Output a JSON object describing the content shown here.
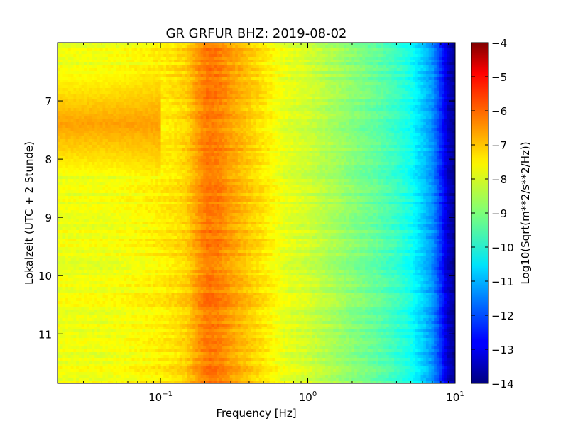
{
  "chart_data": {
    "type": "heatmap",
    "title": "GR GRFUR BHZ: 2019-08-02",
    "xlabel": "Frequency [Hz]",
    "ylabel": "Lokalzeit (UTC + 2 Stunde)",
    "x_scale": "log",
    "xlim": [
      0.02,
      10
    ],
    "ylim": [
      6.0,
      11.85
    ],
    "y_inverted": true,
    "x_ticks": [
      {
        "value": 0.1,
        "base": "10",
        "exp": "−1"
      },
      {
        "value": 1,
        "base": "10",
        "exp": "0"
      },
      {
        "value": 10,
        "base": "10",
        "exp": "1"
      }
    ],
    "y_ticks": [
      7,
      8,
      9,
      10,
      11
    ],
    "colorbar": {
      "label": "Log10(Sqrt(m**2/s**2/Hz))",
      "colormap": "jet",
      "range": [
        -14,
        -4
      ],
      "ticks": [
        "−4",
        "−5",
        "−6",
        "−7",
        "−8",
        "−9",
        "−10",
        "−11",
        "−12",
        "−13",
        "−14"
      ]
    },
    "spectrum_profile": {
      "frequency_hz": [
        0.02,
        0.04,
        0.06,
        0.08,
        0.1,
        0.12,
        0.15,
        0.19,
        0.21,
        0.25,
        0.3,
        0.4,
        0.5,
        0.7,
        1.0,
        1.5,
        2.0,
        3.0,
        4.0,
        5.0,
        6.0,
        7.0,
        8.0,
        9.0,
        10.0
      ],
      "log10_psd": [
        -7.9,
        -7.9,
        -7.8,
        -7.7,
        -7.6,
        -7.5,
        -7.3,
        -6.6,
        -6.4,
        -6.5,
        -6.8,
        -7.2,
        -7.5,
        -8.0,
        -8.2,
        -8.6,
        -8.9,
        -9.3,
        -9.7,
        -10.1,
        -10.7,
        -11.3,
        -12.3,
        -13.3,
        -13.8
      ]
    },
    "microseism_event": {
      "time_range": [
        6.5,
        8.3
      ],
      "frequency_range_hz": [
        0.02,
        0.1
      ],
      "peak_log10_psd": -6.7
    }
  }
}
